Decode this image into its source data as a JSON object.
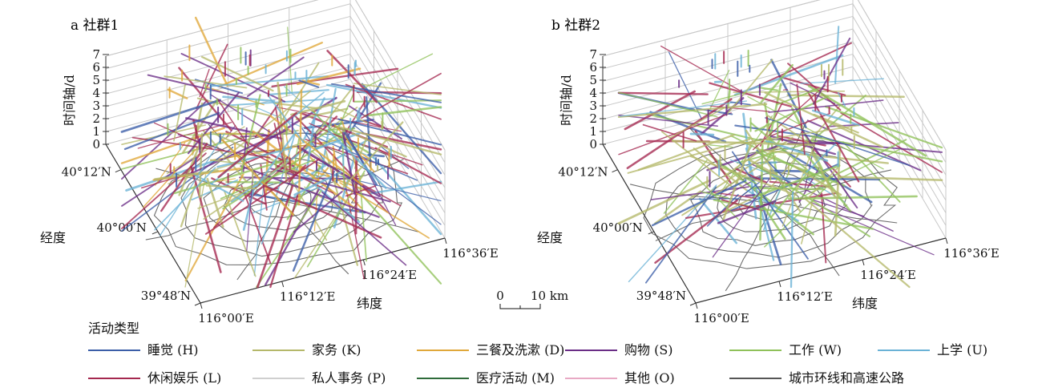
{
  "chart_data": {
    "type": "3d-line",
    "panels": [
      {
        "id": "a",
        "title": "a 社群1",
        "zlabel": "时间轴/d",
        "ylabel": "经度",
        "xlabel": "纬度",
        "zticks": [
          "0",
          "1",
          "2",
          "3",
          "4",
          "5",
          "6",
          "7"
        ],
        "yticks": [
          "39°48′N",
          "40°00′N",
          "40°12′N"
        ],
        "xticks": [
          "116°00′E",
          "116°12′E",
          "116°24′E",
          "116°36′E"
        ],
        "dominant_types": [
          "L",
          "K",
          "D",
          "W",
          "S",
          "U",
          "H"
        ]
      },
      {
        "id": "b",
        "title": "b 社群2",
        "zlabel": "时间轴/d",
        "ylabel": "经度",
        "xlabel": "纬度",
        "zticks": [
          "0",
          "1",
          "2",
          "3",
          "4",
          "5",
          "6",
          "7"
        ],
        "yticks": [
          "39°48′N",
          "40°00′N",
          "40°12′N"
        ],
        "xticks": [
          "116°00′E",
          "116°12′E",
          "116°24′E",
          "116°36′E"
        ],
        "dominant_types": [
          "W",
          "K",
          "L",
          "S",
          "U",
          "H"
        ]
      }
    ],
    "scalebar": {
      "start": "0",
      "end": "10 km"
    },
    "legend": {
      "title": "活动类型",
      "items": [
        {
          "label": "睡觉 (H)",
          "code": "H",
          "color": "#3b5ea8"
        },
        {
          "label": "家务 (K)",
          "code": "K",
          "color": "#b5b86a"
        },
        {
          "label": "三餐及洗漱 (D)",
          "code": "D",
          "color": "#e0a83a"
        },
        {
          "label": "购物 (S)",
          "code": "S",
          "color": "#6a2d86"
        },
        {
          "label": "工作 (W)",
          "code": "W",
          "color": "#8fc15a"
        },
        {
          "label": "上学 (U)",
          "code": "U",
          "color": "#6ab2d6"
        },
        {
          "label": "休闲娱乐 (L)",
          "code": "L",
          "color": "#a4284f"
        },
        {
          "label": "私人事务 (P)",
          "code": "P",
          "color": "#cfcfcf"
        },
        {
          "label": "医疗活动 (M)",
          "code": "M",
          "color": "#2e6b3a"
        },
        {
          "label": "其他 (O)",
          "code": "O",
          "color": "#e8a9c4"
        },
        {
          "label": "城市环线和高速公路",
          "code": "road",
          "color": "#555555"
        }
      ]
    }
  }
}
